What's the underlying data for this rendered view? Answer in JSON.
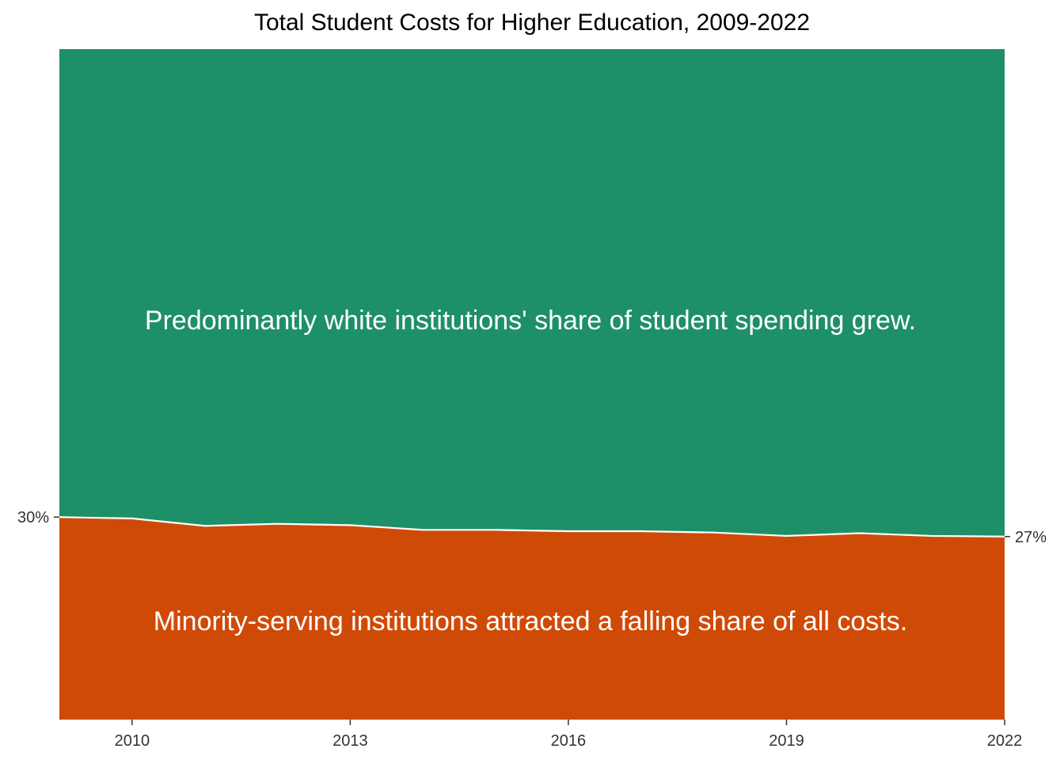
{
  "chart_data": {
    "type": "area",
    "title": "Total Student Costs for Higher Education, 2009-2022",
    "xlabel": "",
    "ylabel": "",
    "xlim": [
      2009,
      2022
    ],
    "ylim": [
      0,
      1
    ],
    "x_ticks": [
      2010,
      2013,
      2016,
      2019,
      2022
    ],
    "x": [
      2009,
      2010,
      2011,
      2012,
      2013,
      2014,
      2015,
      2016,
      2017,
      2018,
      2019,
      2020,
      2021,
      2022
    ],
    "series": [
      {
        "name": "",
        "color": "#D04A07",
        "values": [
          0.302,
          0.3,
          0.289,
          0.292,
          0.29,
          0.283,
          0.283,
          0.281,
          0.281,
          0.279,
          0.274,
          0.278,
          0.274,
          0.273
        ]
      },
      {
        "name": "",
        "color": "#1E9067",
        "values": [
          0.698,
          0.7,
          0.711,
          0.708,
          0.71,
          0.717,
          0.717,
          0.719,
          0.719,
          0.721,
          0.726,
          0.722,
          0.726,
          0.727
        ]
      }
    ],
    "end_labels": {
      "left": "30%",
      "right": "27%"
    },
    "annotations": {
      "top": "Predominantly white institutions' share of student spending grew.",
      "bottom": "Minority-serving institutions attracted a falling share of all costs."
    },
    "grid": false,
    "legend": "none"
  }
}
